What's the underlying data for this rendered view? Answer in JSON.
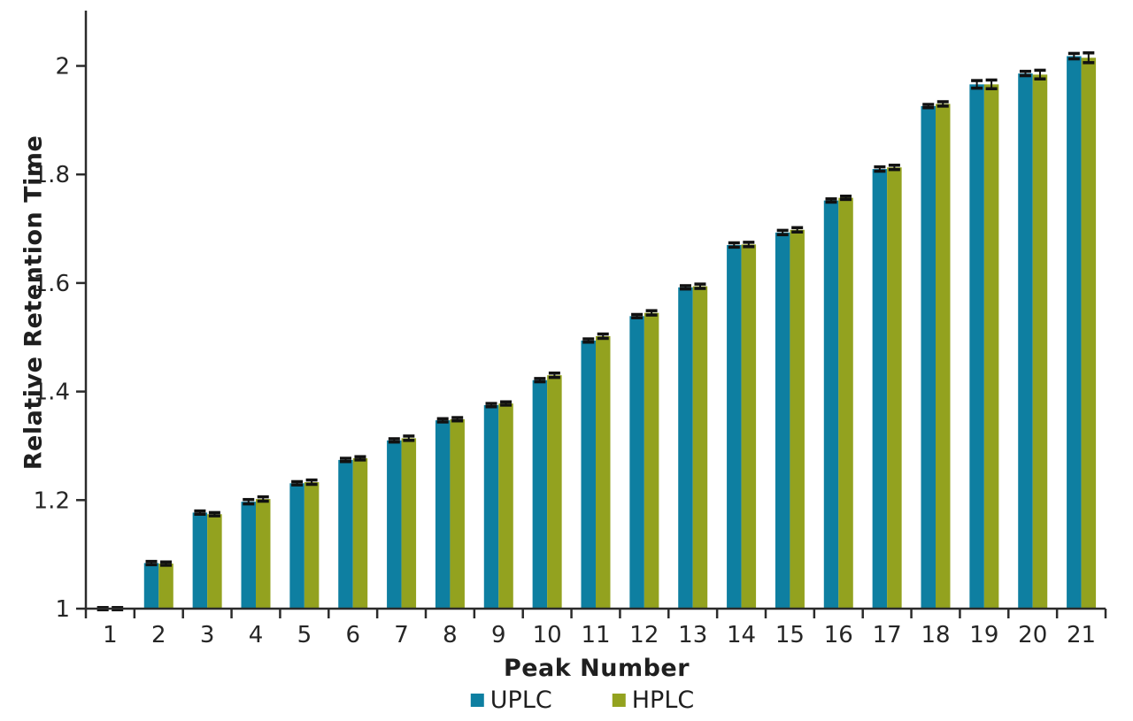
{
  "chart_data": {
    "type": "bar",
    "title": "",
    "xlabel": "Peak Number",
    "ylabel": "Relative Retention Time",
    "categories": [
      "1",
      "2",
      "3",
      "4",
      "5",
      "6",
      "7",
      "8",
      "9",
      "10",
      "11",
      "12",
      "13",
      "14",
      "15",
      "16",
      "17",
      "18",
      "19",
      "20",
      "21"
    ],
    "series": [
      {
        "name": "UPLC",
        "color": "#0E7FA1",
        "values": [
          1.0,
          1.084,
          1.177,
          1.197,
          1.231,
          1.274,
          1.31,
          1.347,
          1.375,
          1.421,
          1.494,
          1.539,
          1.592,
          1.67,
          1.693,
          1.752,
          1.81,
          1.926,
          1.966,
          1.986,
          2.018
        ],
        "errors": [
          0.002,
          0.003,
          0.003,
          0.004,
          0.003,
          0.003,
          0.003,
          0.003,
          0.003,
          0.003,
          0.003,
          0.003,
          0.003,
          0.004,
          0.004,
          0.003,
          0.004,
          0.003,
          0.007,
          0.004,
          0.005
        ]
      },
      {
        "name": "HPLC",
        "color": "#93A21F",
        "values": [
          1.0,
          1.083,
          1.174,
          1.202,
          1.233,
          1.277,
          1.314,
          1.349,
          1.378,
          1.43,
          1.502,
          1.545,
          1.594,
          1.671,
          1.698,
          1.757,
          1.813,
          1.93,
          1.966,
          1.984,
          2.015
        ],
        "errors": [
          0.002,
          0.003,
          0.003,
          0.004,
          0.004,
          0.003,
          0.004,
          0.003,
          0.003,
          0.004,
          0.004,
          0.004,
          0.004,
          0.004,
          0.004,
          0.003,
          0.004,
          0.004,
          0.008,
          0.008,
          0.009
        ]
      }
    ],
    "ylim": [
      1,
      2.1
    ],
    "yticks": [
      1,
      1.2,
      1.4,
      1.6,
      1.8,
      2
    ],
    "ytick_labels": [
      "1",
      "1.2",
      "1.4",
      "1.6",
      "1.8",
      "2"
    ],
    "grid": "off",
    "legend_position": "bottom",
    "error_bar_color": "#111111",
    "axis_color": "#2b2b2b"
  }
}
